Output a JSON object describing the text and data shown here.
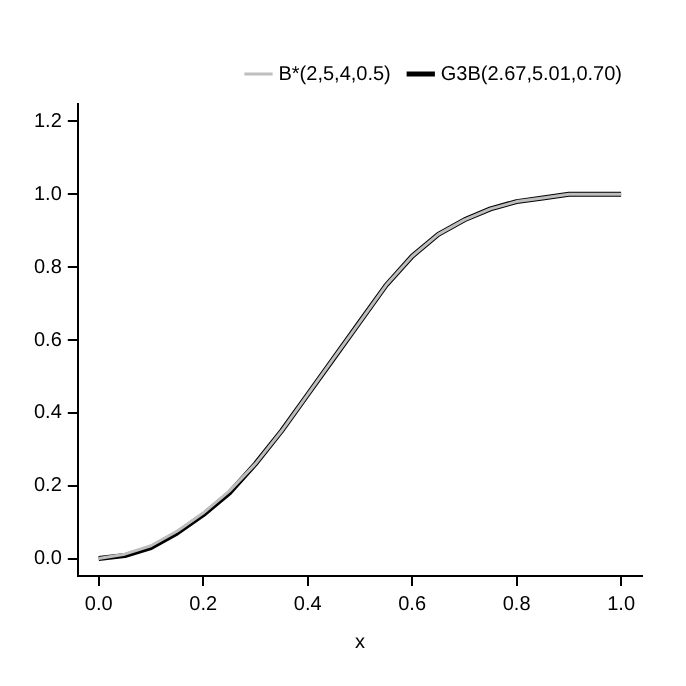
{
  "chart_data": {
    "type": "line",
    "xlabel": "x",
    "x": [
      0,
      0.05,
      0.1,
      0.15,
      0.2,
      0.25,
      0.3,
      0.35,
      0.4,
      0.45,
      0.5,
      0.55,
      0.6,
      0.65,
      0.7,
      0.75,
      0.8,
      0.85,
      0.9,
      0.95,
      1
    ],
    "series": [
      {
        "name": "B*(2,5,4,0.5)",
        "color": "#bebebe",
        "values": [
          0,
          0.012,
          0.035,
          0.075,
          0.125,
          0.185,
          0.26,
          0.35,
          0.45,
          0.55,
          0.65,
          0.75,
          0.83,
          0.89,
          0.93,
          0.96,
          0.98,
          0.99,
          1,
          1,
          1
        ]
      },
      {
        "name": "G3B(2.67,5.01,0.70)",
        "color": "#000000",
        "values": [
          0,
          0.008,
          0.03,
          0.07,
          0.12,
          0.18,
          0.26,
          0.35,
          0.45,
          0.55,
          0.65,
          0.75,
          0.83,
          0.89,
          0.93,
          0.96,
          0.98,
          0.99,
          1,
          1,
          1
        ]
      }
    ],
    "xlim": [
      -0.04,
      1.04
    ],
    "xticks": [
      {
        "value": 0,
        "label": "0.0"
      },
      {
        "value": 0.2,
        "label": "0.2"
      },
      {
        "value": 0.4,
        "label": "0.4"
      },
      {
        "value": 0.6,
        "label": "0.6"
      },
      {
        "value": 0.8,
        "label": "0.8"
      },
      {
        "value": 1,
        "label": "1.0"
      }
    ],
    "ylim": [
      -0.048,
      1.248
    ],
    "yticks": [
      {
        "value": 0,
        "label": "0.0"
      },
      {
        "value": 0.2,
        "label": "0.2"
      },
      {
        "value": 0.4,
        "label": "0.4"
      },
      {
        "value": 0.6,
        "label": "0.6"
      },
      {
        "value": 0.8,
        "label": "0.8"
      },
      {
        "value": 1,
        "label": "1.0"
      },
      {
        "value": 1.2,
        "label": "1.2"
      }
    ],
    "grid": false,
    "legend": "top right",
    "marker": "none",
    "line_style": "solid"
  }
}
